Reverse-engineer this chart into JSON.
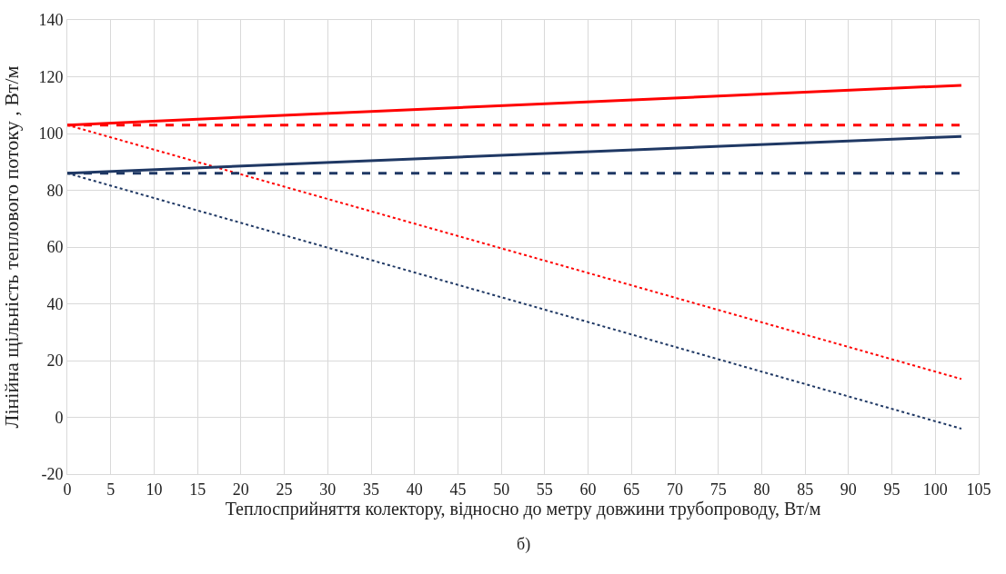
{
  "chart_data": {
    "type": "line",
    "xlabel": "Теплосприйняття колектору, відносно до метру довжини трубопроводу, Вт/м",
    "ylabel": "Лінійна щільність теплового потоку , Вт/м",
    "annotations": [
      "б)"
    ],
    "x": [
      0,
      103
    ],
    "series": [
      {
        "color": "#ff0000",
        "values": [
          103,
          117
        ],
        "line_style": "solid"
      },
      {
        "color": "#ff0000",
        "values": [
          103,
          103
        ],
        "line_style": "dashed"
      },
      {
        "color": "#ff0000",
        "values": [
          103,
          13.5
        ],
        "line_style": "dotted"
      },
      {
        "color": "#1f3864",
        "values": [
          86,
          99
        ],
        "line_style": "solid"
      },
      {
        "color": "#1f3864",
        "values": [
          86,
          86
        ],
        "line_style": "dashed"
      },
      {
        "color": "#1f3864",
        "values": [
          86,
          -4
        ],
        "line_style": "dotted"
      }
    ],
    "xlim": [
      0,
      105
    ],
    "xticks": [
      0,
      5,
      10,
      15,
      20,
      25,
      30,
      35,
      40,
      45,
      50,
      55,
      60,
      65,
      70,
      75,
      80,
      85,
      90,
      95,
      100,
      105
    ],
    "ylim": [
      -20,
      140
    ],
    "yticks": [
      -20,
      0,
      20,
      40,
      60,
      80,
      100,
      120,
      140
    ],
    "grid": true
  }
}
